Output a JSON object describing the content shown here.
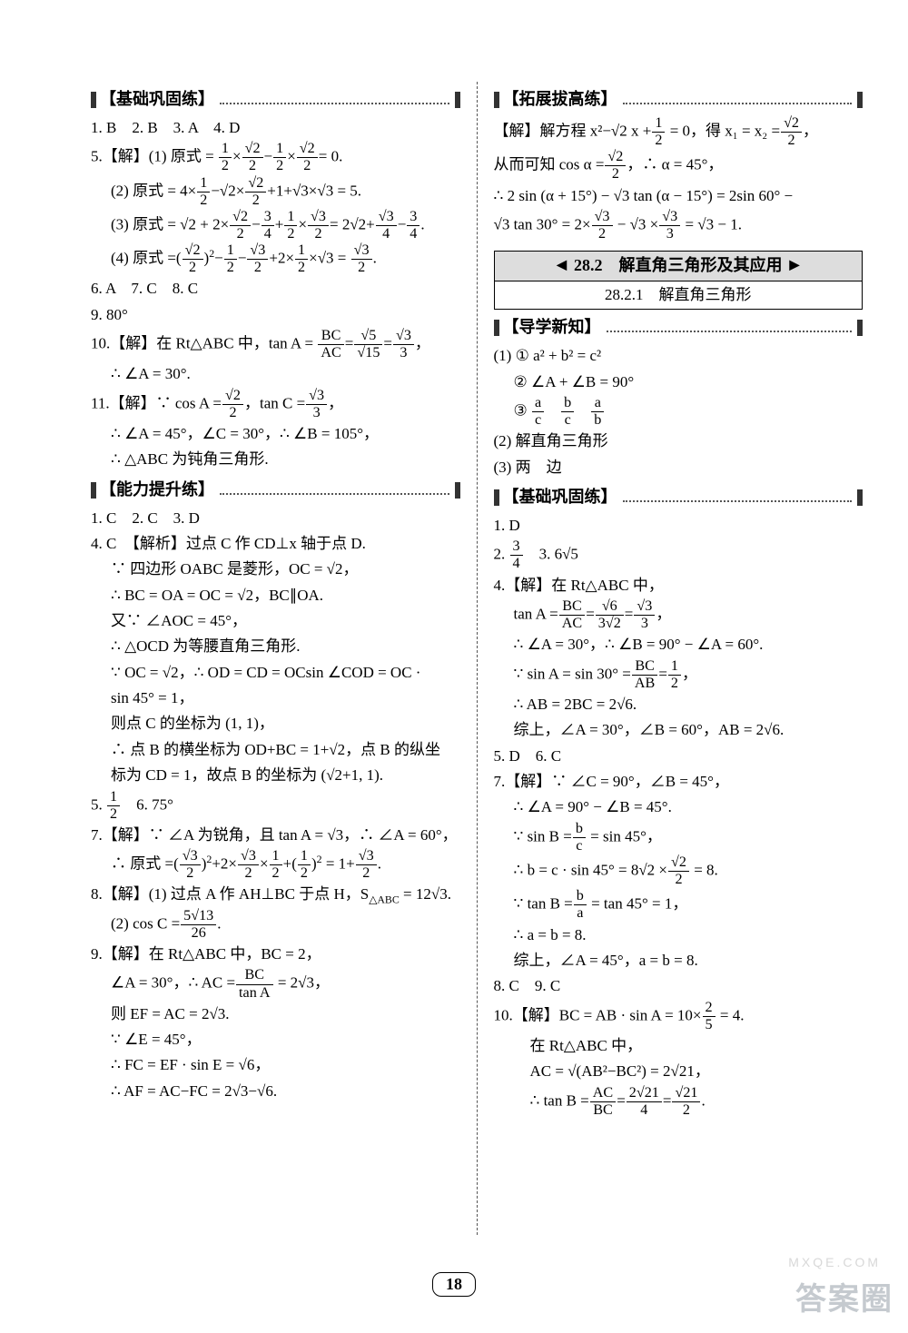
{
  "page_number": "18",
  "watermark_main": "答案圈",
  "watermark_url": "MXQE.COM",
  "left": {
    "sec1": "【基础巩固练】",
    "l1": "1. B　2. B　3. A　4. D",
    "l5pre": "5.【解】(1) 原式 =",
    "l5_2": "(2) 原式 = 4×",
    "l5_3": "(3) 原式 = √2 + 2×",
    "l5_4": "(4) 原式 =",
    "l6": "6. A　7. C　8. C",
    "l9": "9. 80°",
    "l10a": "10.【解】在 Rt△ABC 中，tan A =",
    "l10b": "∴ ∠A = 30°.",
    "l11a": "11.【解】∵ cos A =",
    "l11a2": "，tan C =",
    "l11b": "∴ ∠A = 45°，∠C = 30°，∴ ∠B = 105°，",
    "l11c": "∴ △ABC 为钝角三角形.",
    "sec2": "【能力提升练】",
    "m1": "1. C　2. C　3. D",
    "m4a": "4. C　【解析】过点 C 作 CD⊥x 轴于点 D.",
    "m4b": "∵ 四边形 OABC 是菱形，OC = √2，",
    "m4c": "∴ BC = OA = OC = √2，BC∥OA.",
    "m4d": "又∵ ∠AOC = 45°，",
    "m4e": "∴ △OCD 为等腰直角三角形.",
    "m4f": "∵ OC = √2，∴ OD = CD = OCsin ∠COD = OC ·",
    "m4g": "sin 45° = 1，",
    "m4h": "则点 C 的坐标为 (1, 1)，",
    "m4i": "∴ 点 B 的横坐标为 OD+BC = 1+√2，点 B 的纵坐",
    "m4j": "标为 CD = 1，故点 B 的坐标为 (√2+1, 1).",
    "m5": "5.",
    "m6": "6. 75°",
    "m7a": "7.【解】∵ ∠A 为锐角，且 tan A = √3，∴ ∠A = 60°，",
    "m7b": "∴ 原式 =",
    "m8a": "8.【解】(1) 过点 A 作 AH⊥BC 于点 H，S",
    "m8a2": " = 12√3.",
    "m8b": "(2) cos C =",
    "m9a": "9.【解】在 Rt△ABC 中，BC = 2，",
    "m9b": "∠A = 30°，∴ AC =",
    "m9b2": " = 2√3，",
    "m9c": "则 EF = AC = 2√3.",
    "m9d": "∵ ∠E = 45°，",
    "m9e": "∴ FC = EF · sin E = √6，",
    "m9f": "∴ AF = AC−FC = 2√3−√6."
  },
  "right": {
    "sec3": "【拓展拔高练】",
    "t1a": "【解】解方程 x²−√2 x +",
    "t1a2": " = 0，得 x₁ = x₂ =",
    "t1b": "从而可知 cos α =",
    "t1b2": "，∴ α = 45°，",
    "t1c": "∴ 2 sin (α + 15°) − √3 tan (α − 15°) = 2sin 60° −",
    "t1d": "√3 tan 30° = 2×",
    "t1d2": " − √3 ×",
    "t1d3": " = √3 − 1.",
    "chap_top": "28.2　解直角三角形及其应用",
    "chap_sub": "28.2.1　解直角三角形",
    "sec4": "【导学新知】",
    "d1": "(1) ① a² + b² = c²",
    "d2": "② ∠A + ∠B = 90°",
    "d3pre": "③",
    "d4": "(2) 解直角三角形",
    "d5": "(3) 两　边",
    "sec5": "【基础巩固练】",
    "b1": "1. D",
    "b2": "2.",
    "b3": "3. 6√5",
    "b4a": "4.【解】在 Rt△ABC 中，",
    "b4b": "tan A =",
    "b4c": "∴ ∠A = 30°，∴ ∠B = 90° − ∠A = 60°.",
    "b4d": "∵ sin A = sin 30° =",
    "b4e": "∴ AB = 2BC = 2√6.",
    "b4f": "综上，∠A = 30°，∠B = 60°，AB = 2√6.",
    "b5": "5. D　6. C",
    "b7a": "7.【解】∵ ∠C = 90°，∠B = 45°，",
    "b7b": "∴ ∠A = 90° − ∠B = 45°.",
    "b7c": "∵ sin B =",
    "b7c2": " = sin 45°，",
    "b7d": "∴ b = c · sin 45° = 8√2 ×",
    "b7d2": " = 8.",
    "b7e": "∵ tan B =",
    "b7e2": " = tan 45° = 1，",
    "b7f": "∴ a = b = 8.",
    "b7g": "综上，∠A = 45°，a = b = 8.",
    "b8": "8. C　9. C",
    "b10a": "10.【解】BC = AB · sin A = 10×",
    "b10a2": " = 4.",
    "b10b": "在 Rt△ABC 中，",
    "b10c": "AC = √(AB²−BC²) = 2√21，",
    "b10d": "∴ tan B =",
    "b10d2": "."
  }
}
